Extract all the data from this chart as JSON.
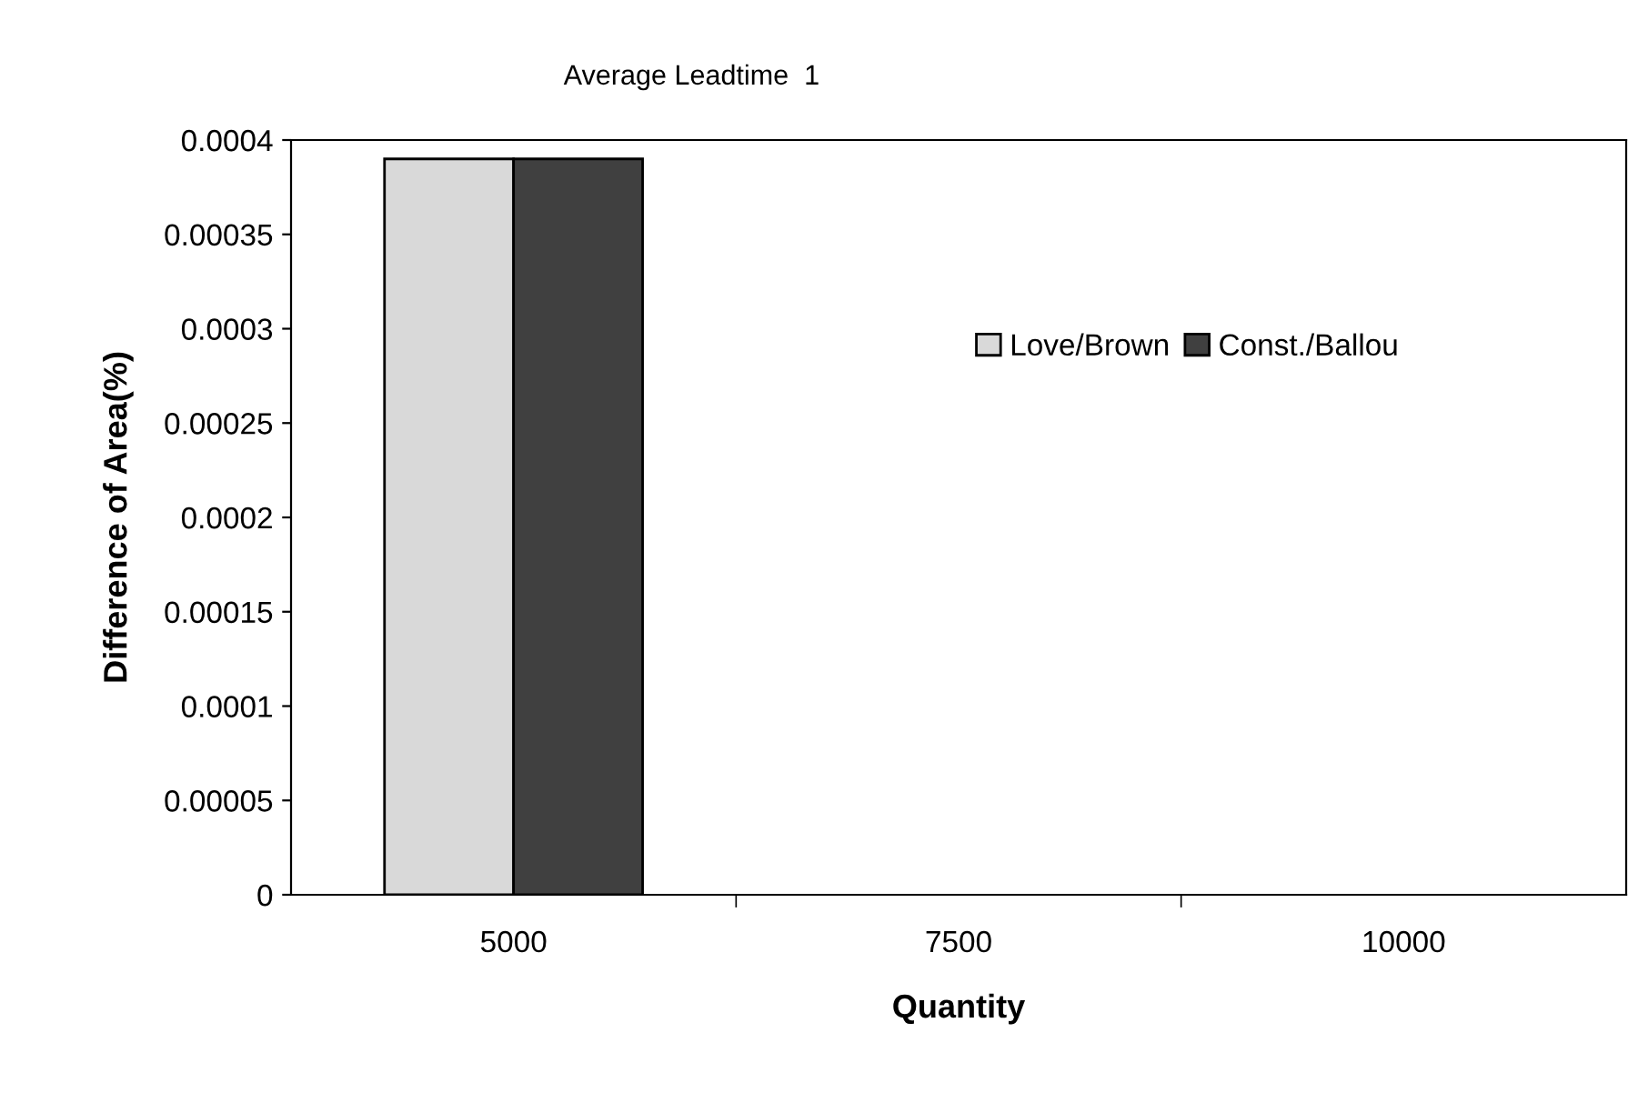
{
  "chart_data": {
    "type": "bar",
    "title": "Average Leadtime  1",
    "xlabel": "Quantity",
    "ylabel": "Difference of Area(%)",
    "categories": [
      "5000",
      "7500",
      "10000"
    ],
    "series": [
      {
        "name": "Love/Brown",
        "color": "#d9d9d9",
        "values": [
          0.00039,
          null,
          null
        ]
      },
      {
        "name": "Const./Ballou",
        "color": "#404040",
        "values": [
          0.00039,
          null,
          null
        ]
      }
    ],
    "ylim": [
      0,
      0.0004
    ],
    "yticks": [
      0,
      {
        "value": 5e-05,
        "label": "0.00005"
      },
      0.0001,
      0.00015,
      0.0002,
      0.00025,
      0.0003,
      0.00035,
      0.0004
    ],
    "legend": "top right",
    "grid": false
  }
}
